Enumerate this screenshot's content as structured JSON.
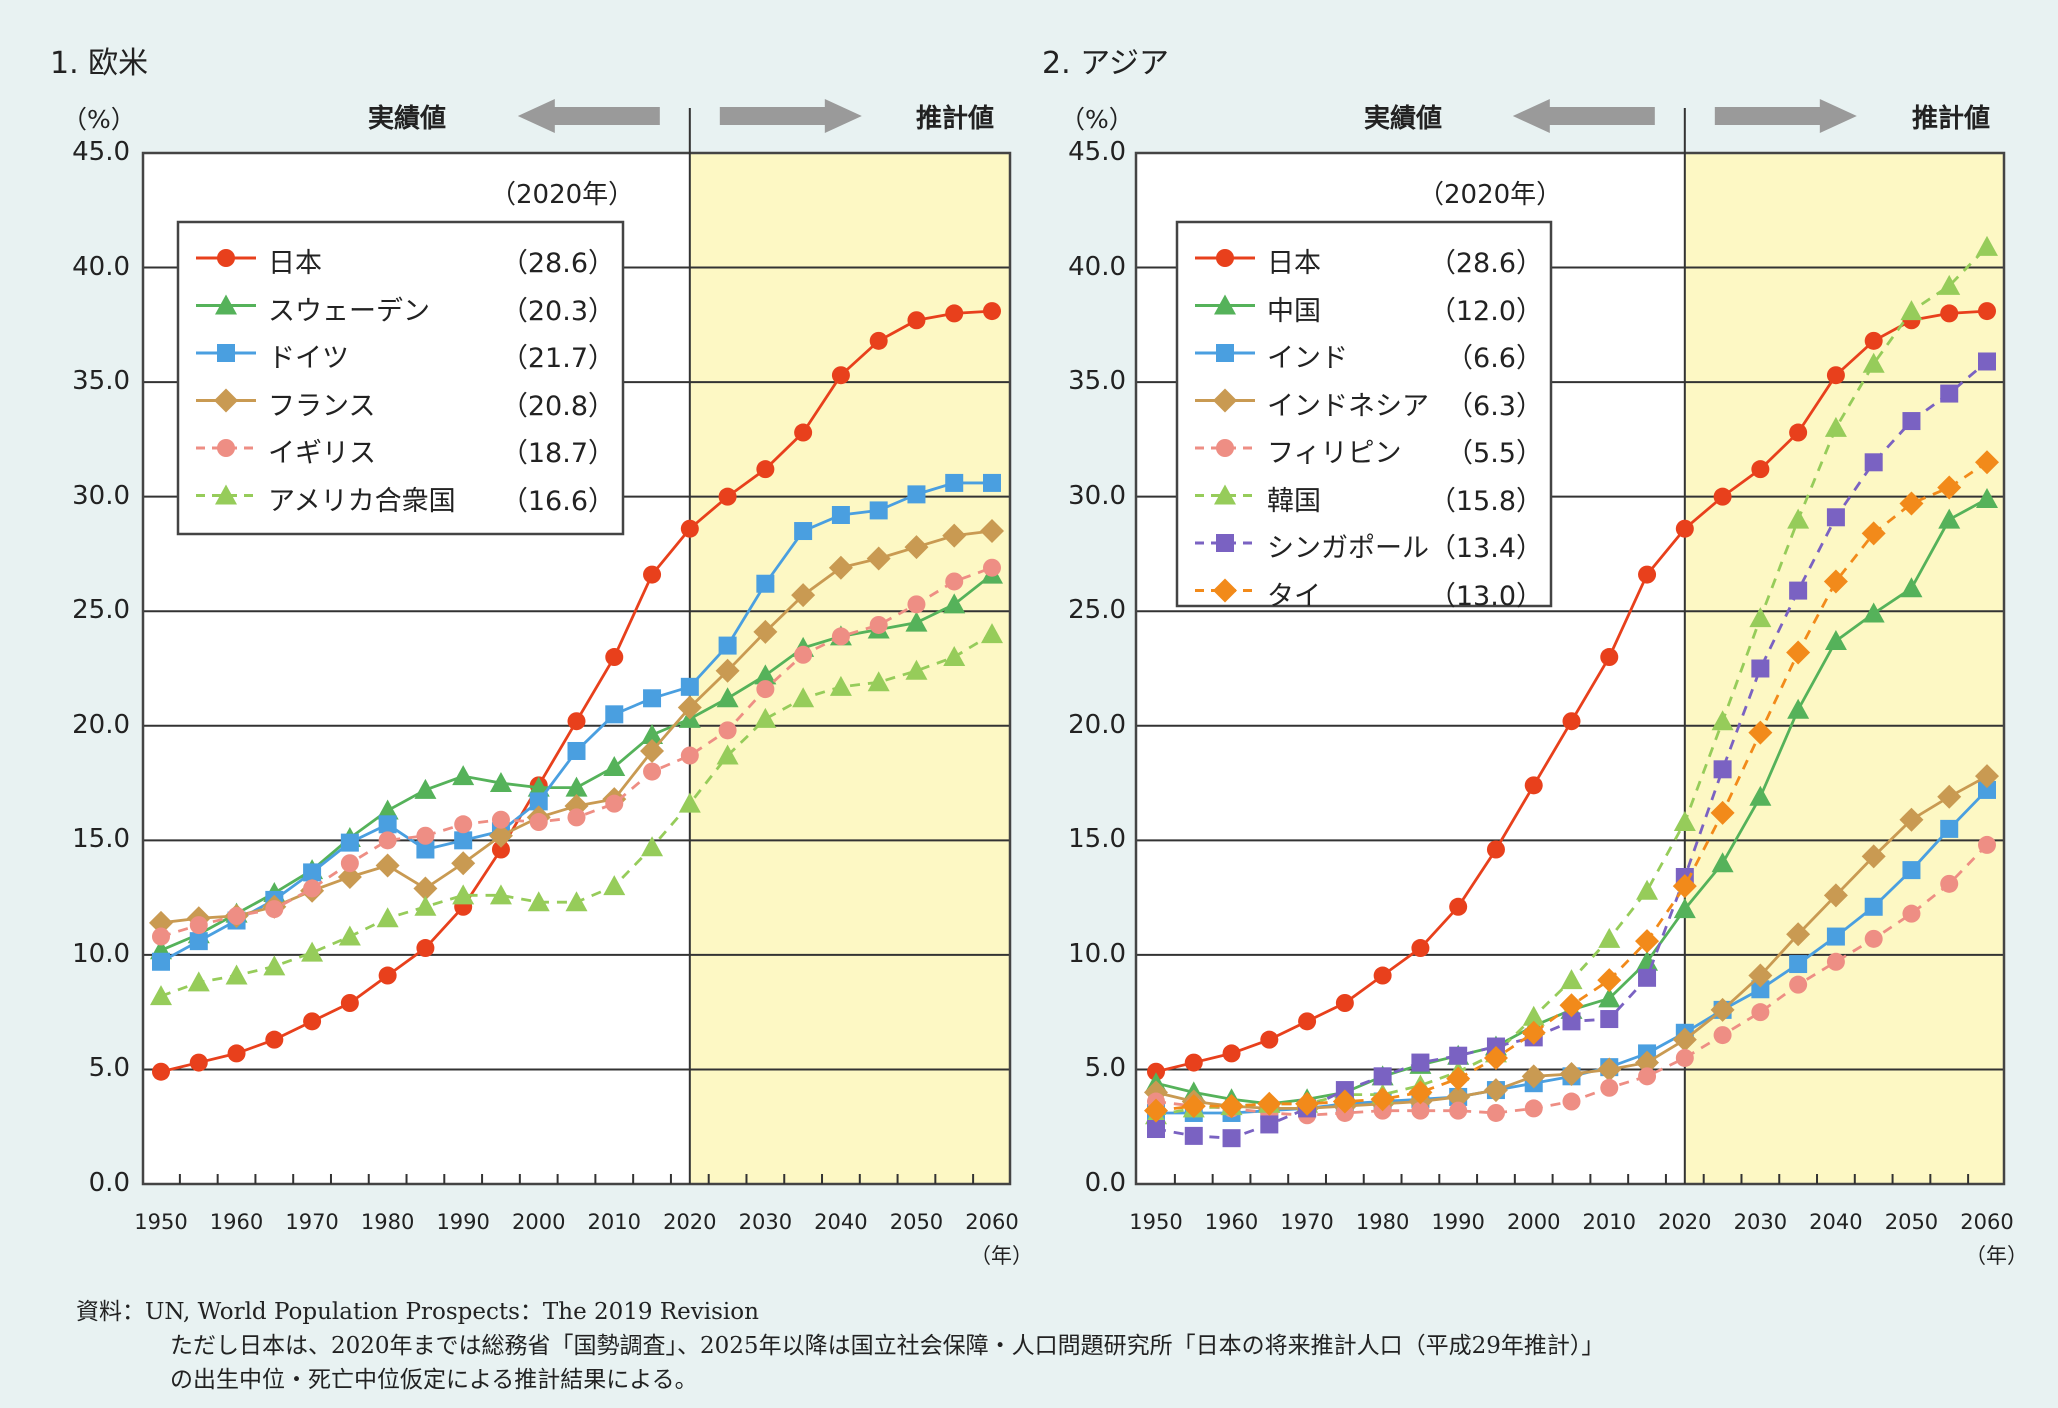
{
  "common": {
    "unit": "（%）",
    "actual_label": "実績値",
    "projected_label": "推計値",
    "legend_year": "（2020年）",
    "x_unit": "（年）",
    "colors": {
      "projection_bg": "#fdf8c4",
      "plot_bg": "#ffffff",
      "page_bg": "#e8f2f2",
      "arrow": "#9a9a9a"
    }
  },
  "notes": {
    "source": "資料：UN, World Population Prospects：The 2019 Revision",
    "line2": "ただし日本は、2020年までは総務省「国勢調査」、2025年以降は国立社会保障・人口問題研究所「日本の将来推計人口（平成29年推計）」",
    "line3": "の出生中位・死亡中位仮定による推計結果による。"
  },
  "chart_data": [
    {
      "type": "line",
      "title": "1. 欧米",
      "ylabel": "（%）",
      "xlabel": "（年）",
      "ylim": [
        0,
        45
      ],
      "yticks": [
        "0.0",
        "5.0",
        "10.0",
        "15.0",
        "20.0",
        "25.0",
        "30.0",
        "35.0",
        "40.0",
        "45.0"
      ],
      "xticks": [
        "1950",
        "1960",
        "1970",
        "1980",
        "1990",
        "2000",
        "2010",
        "2020",
        "2030",
        "2040",
        "2050",
        "2060"
      ],
      "x": [
        1950,
        1955,
        1960,
        1965,
        1970,
        1975,
        1980,
        1985,
        1990,
        1995,
        2000,
        2005,
        2010,
        2015,
        2020,
        2025,
        2030,
        2035,
        2040,
        2045,
        2050,
        2055,
        2060
      ],
      "projection_start": 2020,
      "grid": true,
      "legend_position": "top-left",
      "series": [
        {
          "name": "日本",
          "label2020": "（28.6）",
          "color": "#e8401c",
          "marker": "circle",
          "dash": false,
          "values": [
            4.9,
            5.3,
            5.7,
            6.3,
            7.1,
            7.9,
            9.1,
            10.3,
            12.1,
            14.6,
            17.4,
            20.2,
            23.0,
            26.6,
            28.6,
            30.0,
            31.2,
            32.8,
            35.3,
            36.8,
            37.7,
            38.0,
            38.1
          ]
        },
        {
          "name": "スウェーデン",
          "label2020": "（20.3）",
          "color": "#55b25a",
          "marker": "triangle",
          "dash": false,
          "values": [
            10.2,
            10.9,
            11.8,
            12.7,
            13.7,
            15.1,
            16.3,
            17.2,
            17.8,
            17.5,
            17.3,
            17.3,
            18.2,
            19.6,
            20.3,
            21.2,
            22.2,
            23.4,
            23.9,
            24.2,
            24.5,
            25.3,
            26.6
          ]
        },
        {
          "name": "ドイツ",
          "label2020": "（21.7）",
          "color": "#4a9fe0",
          "marker": "square",
          "dash": false,
          "values": [
            9.7,
            10.6,
            11.5,
            12.4,
            13.6,
            14.9,
            15.7,
            14.6,
            15.0,
            15.4,
            16.7,
            18.9,
            20.5,
            21.2,
            21.7,
            23.5,
            26.2,
            28.5,
            29.2,
            29.4,
            30.1,
            30.6,
            30.6
          ]
        },
        {
          "name": "フランス",
          "label2020": "（20.8）",
          "color": "#c99a52",
          "marker": "diamond",
          "dash": false,
          "values": [
            11.4,
            11.6,
            11.7,
            12.1,
            12.8,
            13.4,
            13.9,
            12.9,
            14.0,
            15.2,
            16.0,
            16.5,
            16.8,
            18.9,
            20.8,
            22.4,
            24.1,
            25.7,
            26.9,
            27.3,
            27.8,
            28.3,
            28.5
          ]
        },
        {
          "name": "イギリス",
          "label2020": "（18.7）",
          "color": "#ee8e84",
          "marker": "circle",
          "dash": true,
          "values": [
            10.8,
            11.3,
            11.7,
            12.0,
            12.9,
            14.0,
            15.0,
            15.2,
            15.7,
            15.9,
            15.8,
            16.0,
            16.6,
            18.0,
            18.7,
            19.8,
            21.6,
            23.1,
            23.9,
            24.4,
            25.3,
            26.3,
            26.9
          ]
        },
        {
          "name": "アメリカ合衆国",
          "label2020": "（16.6）",
          "color": "#96cc5a",
          "marker": "triangle",
          "dash": true,
          "values": [
            8.2,
            8.8,
            9.1,
            9.5,
            10.1,
            10.8,
            11.6,
            12.1,
            12.6,
            12.6,
            12.3,
            12.3,
            13.0,
            14.7,
            16.6,
            18.7,
            20.3,
            21.2,
            21.7,
            21.9,
            22.4,
            23.0,
            24.0
          ]
        }
      ]
    },
    {
      "type": "line",
      "title": "2. アジア",
      "ylabel": "（%）",
      "xlabel": "（年）",
      "ylim": [
        0,
        45
      ],
      "yticks": [
        "0.0",
        "5.0",
        "10.0",
        "15.0",
        "20.0",
        "25.0",
        "30.0",
        "35.0",
        "40.0",
        "45.0"
      ],
      "xticks": [
        "1950",
        "1960",
        "1970",
        "1980",
        "1990",
        "2000",
        "2010",
        "2020",
        "2030",
        "2040",
        "2050",
        "2060"
      ],
      "x": [
        1950,
        1955,
        1960,
        1965,
        1970,
        1975,
        1980,
        1985,
        1990,
        1995,
        2000,
        2005,
        2010,
        2015,
        2020,
        2025,
        2030,
        2035,
        2040,
        2045,
        2050,
        2055,
        2060
      ],
      "projection_start": 2020,
      "grid": true,
      "legend_position": "top-left",
      "series": [
        {
          "name": "日本",
          "label2020": "（28.6）",
          "color": "#e8401c",
          "marker": "circle",
          "dash": false,
          "values": [
            4.9,
            5.3,
            5.7,
            6.3,
            7.1,
            7.9,
            9.1,
            10.3,
            12.1,
            14.6,
            17.4,
            20.2,
            23.0,
            26.6,
            28.6,
            30.0,
            31.2,
            32.8,
            35.3,
            36.8,
            37.7,
            38.0,
            38.1
          ]
        },
        {
          "name": "中国",
          "label2020": "（12.0）",
          "color": "#55b25a",
          "marker": "triangle",
          "dash": false,
          "values": [
            4.4,
            4.0,
            3.7,
            3.5,
            3.7,
            4.0,
            4.7,
            5.2,
            5.6,
            6.0,
            6.9,
            7.6,
            8.1,
            9.7,
            12.0,
            14.0,
            16.9,
            20.7,
            23.7,
            24.9,
            26.0,
            29.0,
            29.9
          ]
        },
        {
          "name": "インド",
          "label2020": "（6.6）",
          "color": "#4a9fe0",
          "marker": "square",
          "dash": false,
          "values": [
            3.1,
            3.1,
            3.1,
            3.2,
            3.3,
            3.5,
            3.6,
            3.7,
            3.8,
            4.1,
            4.4,
            4.7,
            5.1,
            5.7,
            6.6,
            7.6,
            8.5,
            9.6,
            10.8,
            12.1,
            13.7,
            15.5,
            17.2
          ]
        },
        {
          "name": "インドネシア",
          "label2020": "（6.3）",
          "color": "#c99a52",
          "marker": "diamond",
          "dash": false,
          "values": [
            4.0,
            3.6,
            3.4,
            3.3,
            3.3,
            3.4,
            3.5,
            3.6,
            3.8,
            4.1,
            4.7,
            4.8,
            5.0,
            5.3,
            6.3,
            7.6,
            9.1,
            10.9,
            12.6,
            14.3,
            15.9,
            16.9,
            17.8
          ]
        },
        {
          "name": "フィリピン",
          "label2020": "（5.5）",
          "color": "#ee8e84",
          "marker": "circle",
          "dash": true,
          "values": [
            3.6,
            3.4,
            3.3,
            3.1,
            3.0,
            3.1,
            3.2,
            3.2,
            3.2,
            3.1,
            3.3,
            3.6,
            4.2,
            4.7,
            5.5,
            6.5,
            7.5,
            8.7,
            9.7,
            10.7,
            11.8,
            13.1,
            14.8
          ]
        },
        {
          "name": "韓国",
          "label2020": "（15.8）",
          "color": "#96cc5a",
          "marker": "triangle",
          "dash": true,
          "values": [
            3.0,
            3.3,
            3.4,
            3.5,
            3.5,
            3.9,
            3.9,
            4.3,
            4.9,
            5.7,
            7.3,
            8.9,
            10.7,
            12.8,
            15.8,
            20.2,
            24.7,
            29.0,
            33.0,
            35.8,
            38.1,
            39.2,
            40.9
          ]
        },
        {
          "name": "シンガポール",
          "label2020": "（13.4）",
          "color": "#7a62c2",
          "marker": "square",
          "dash": true,
          "values": [
            2.4,
            2.1,
            2.0,
            2.6,
            3.3,
            4.1,
            4.7,
            5.3,
            5.6,
            6.0,
            6.4,
            7.1,
            7.2,
            9.0,
            13.4,
            18.1,
            22.5,
            25.9,
            29.1,
            31.5,
            33.3,
            34.5,
            35.9
          ]
        },
        {
          "name": "タイ",
          "label2020": "（13.0）",
          "color": "#f28a1a",
          "marker": "diamond",
          "dash": true,
          "values": [
            3.2,
            3.4,
            3.4,
            3.5,
            3.5,
            3.6,
            3.7,
            4.0,
            4.6,
            5.5,
            6.6,
            7.8,
            8.9,
            10.6,
            13.0,
            16.2,
            19.7,
            23.2,
            26.3,
            28.4,
            29.7,
            30.4,
            31.5
          ]
        }
      ]
    }
  ]
}
